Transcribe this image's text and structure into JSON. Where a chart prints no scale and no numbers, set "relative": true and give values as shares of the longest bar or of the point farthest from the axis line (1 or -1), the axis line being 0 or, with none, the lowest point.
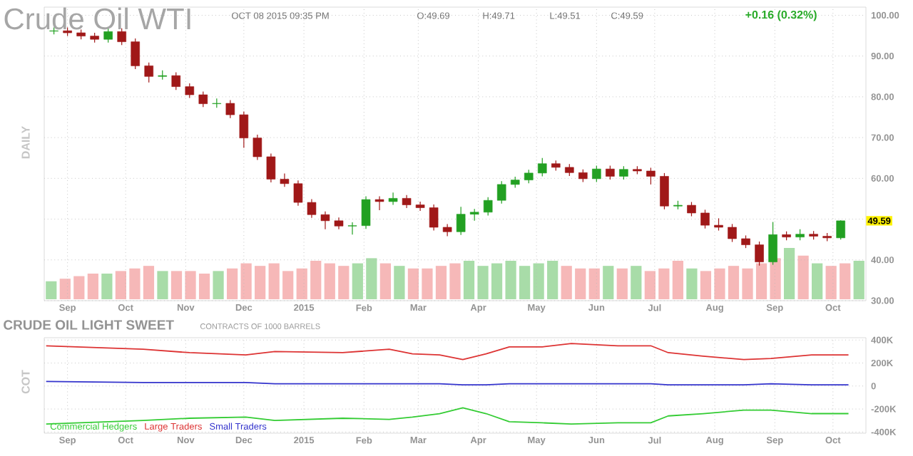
{
  "chart_data": [
    {
      "type": "candlestick",
      "title": "Crude Oil WTI",
      "ylabel": "DAILY",
      "annotations": [
        "OCT 08 2015 09:35 PM",
        "O:49.69",
        "H:49.71",
        "L:49.51",
        "C:49.59",
        "+0.16 (0.32%)",
        {
          "text": "49.59",
          "y": 49.59
        }
      ],
      "x": [
        "2014-08-25",
        "2014-09-01",
        "2014-09-08",
        "2014-09-15",
        "2014-09-22",
        "2014-09-29",
        "2014-10-06",
        "2014-10-13",
        "2014-10-20",
        "2014-10-27",
        "2014-11-03",
        "2014-11-10",
        "2014-11-17",
        "2014-11-24",
        "2014-12-01",
        "2014-12-08",
        "2014-12-15",
        "2014-12-22",
        "2014-12-29",
        "2015-01-05",
        "2015-01-12",
        "2015-01-19",
        "2015-01-26",
        "2015-02-02",
        "2015-02-09",
        "2015-02-16",
        "2015-02-23",
        "2015-03-02",
        "2015-03-09",
        "2015-03-16",
        "2015-03-23",
        "2015-03-30",
        "2015-04-06",
        "2015-04-13",
        "2015-04-20",
        "2015-04-27",
        "2015-05-04",
        "2015-05-11",
        "2015-05-18",
        "2015-05-25",
        "2015-06-01",
        "2015-06-08",
        "2015-06-15",
        "2015-06-22",
        "2015-06-29",
        "2015-07-06",
        "2015-07-13",
        "2015-07-20",
        "2015-07-27",
        "2015-08-03",
        "2015-08-10",
        "2015-08-17",
        "2015-08-24",
        "2015-08-31",
        "2015-09-07",
        "2015-09-14",
        "2015-09-21",
        "2015-09-28",
        "2015-10-05"
      ],
      "ohlc": [
        [
          96.1,
          97.0,
          95.3,
          96.2
        ],
        [
          96.2,
          97.0,
          94.9,
          95.7
        ],
        [
          95.7,
          96.5,
          94.1,
          94.9
        ],
        [
          94.9,
          95.7,
          93.3,
          94.1
        ],
        [
          94.1,
          96.8,
          93.3,
          96.0
        ],
        [
          96.0,
          96.8,
          92.7,
          93.5
        ],
        [
          93.5,
          94.3,
          86.8,
          87.6
        ],
        [
          87.6,
          88.4,
          83.5,
          85.0
        ],
        [
          85.0,
          86.5,
          84.2,
          85.2
        ],
        [
          85.2,
          86.0,
          81.7,
          82.5
        ],
        [
          82.5,
          83.3,
          79.7,
          80.5
        ],
        [
          80.5,
          81.3,
          77.5,
          78.3
        ],
        [
          78.3,
          79.6,
          77.3,
          78.4
        ],
        [
          78.4,
          79.2,
          74.8,
          75.6
        ],
        [
          75.6,
          76.4,
          67.5,
          69.9
        ],
        [
          69.9,
          70.7,
          64.5,
          65.3
        ],
        [
          65.3,
          66.1,
          59.0,
          59.8
        ],
        [
          59.8,
          61.2,
          57.9,
          58.7
        ],
        [
          58.7,
          59.5,
          53.3,
          54.1
        ],
        [
          54.1,
          54.9,
          50.3,
          51.1
        ],
        [
          51.1,
          51.9,
          47.5,
          49.6
        ],
        [
          49.6,
          50.4,
          47.5,
          48.3
        ],
        [
          48.3,
          49.2,
          46.2,
          48.4
        ],
        [
          48.4,
          55.6,
          47.6,
          54.8
        ],
        [
          54.8,
          55.6,
          52.2,
          54.3
        ],
        [
          54.3,
          56.5,
          53.5,
          55.1
        ],
        [
          55.1,
          55.9,
          52.7,
          53.5
        ],
        [
          53.5,
          54.3,
          52.0,
          52.8
        ],
        [
          52.8,
          53.6,
          47.2,
          48.0
        ],
        [
          48.0,
          48.8,
          45.8,
          46.9
        ],
        [
          46.9,
          53.0,
          46.1,
          51.2
        ],
        [
          51.2,
          52.5,
          49.6,
          51.7
        ],
        [
          51.7,
          55.4,
          50.9,
          54.6
        ],
        [
          54.6,
          59.3,
          53.8,
          58.5
        ],
        [
          58.5,
          60.4,
          57.7,
          59.6
        ],
        [
          59.6,
          62.1,
          58.8,
          61.3
        ],
        [
          61.3,
          65.0,
          60.5,
          63.6
        ],
        [
          63.6,
          64.4,
          61.9,
          62.7
        ],
        [
          62.7,
          63.5,
          60.6,
          61.4
        ],
        [
          61.4,
          62.2,
          59.1,
          59.9
        ],
        [
          59.9,
          63.1,
          59.1,
          62.3
        ],
        [
          62.3,
          63.1,
          59.7,
          60.5
        ],
        [
          60.5,
          63.0,
          59.7,
          62.2
        ],
        [
          62.2,
          63.0,
          61.0,
          61.8
        ],
        [
          61.8,
          62.6,
          58.5,
          60.5
        ],
        [
          60.5,
          61.3,
          52.4,
          53.2
        ],
        [
          53.2,
          54.5,
          52.4,
          53.4
        ],
        [
          53.4,
          54.2,
          50.7,
          51.5
        ],
        [
          51.5,
          52.3,
          47.7,
          48.5
        ],
        [
          48.5,
          50.2,
          47.2,
          48.0
        ],
        [
          48.0,
          48.8,
          44.4,
          45.2
        ],
        [
          45.2,
          46.0,
          42.9,
          43.7
        ],
        [
          43.7,
          44.5,
          38.6,
          39.5
        ],
        [
          39.5,
          49.3,
          38.8,
          46.2
        ],
        [
          46.2,
          47.0,
          44.8,
          45.6
        ],
        [
          45.6,
          47.5,
          44.8,
          46.3
        ],
        [
          46.3,
          47.1,
          45.0,
          45.8
        ],
        [
          45.8,
          46.6,
          44.6,
          45.4
        ],
        [
          45.4,
          49.71,
          45.0,
          49.59
        ]
      ],
      "colors": [
        "#22a022",
        "#a01818",
        "#a01818",
        "#a01818",
        "#22a022",
        "#a01818",
        "#a01818",
        "#a01818",
        "#22a022",
        "#a01818",
        "#a01818",
        "#a01818",
        "#22a022",
        "#a01818",
        "#a01818",
        "#a01818",
        "#a01818",
        "#a01818",
        "#a01818",
        "#a01818",
        "#a01818",
        "#a01818",
        "#22a022",
        "#22a022",
        "#a01818",
        "#22a022",
        "#a01818",
        "#a01818",
        "#a01818",
        "#a01818",
        "#22a022",
        "#22a022",
        "#22a022",
        "#22a022",
        "#22a022",
        "#22a022",
        "#22a022",
        "#a01818",
        "#a01818",
        "#a01818",
        "#22a022",
        "#a01818",
        "#22a022",
        "#a01818",
        "#a01818",
        "#a01818",
        "#22a022",
        "#a01818",
        "#a01818",
        "#a01818",
        "#a01818",
        "#a01818",
        "#a01818",
        "#22a022",
        "#a01818",
        "#22a022",
        "#a01818",
        "#a01818",
        "#22a022"
      ],
      "xlim": [
        "2014-08-20",
        "2015-10-18"
      ],
      "xticks": [
        {
          "value": "2014-09-01",
          "label": "Sep"
        },
        {
          "value": "2014-10-01",
          "label": "Oct"
        },
        {
          "value": "2014-11-01",
          "label": "Nov"
        },
        {
          "value": "2014-12-01",
          "label": "Dec"
        },
        {
          "value": "2015-01-01",
          "label": "2015"
        },
        {
          "value": "2015-02-01",
          "label": "Feb"
        },
        {
          "value": "2015-03-01",
          "label": "Mar"
        },
        {
          "value": "2015-04-01",
          "label": "Apr"
        },
        {
          "value": "2015-05-01",
          "label": "May"
        },
        {
          "value": "2015-06-01",
          "label": "Jun"
        },
        {
          "value": "2015-07-01",
          "label": "Jul"
        },
        {
          "value": "2015-08-01",
          "label": "Aug"
        },
        {
          "value": "2015-09-01",
          "label": "Sep"
        },
        {
          "value": "2015-10-01",
          "label": "Oct"
        }
      ],
      "ylim": [
        30,
        102
      ],
      "yticks": [
        {
          "value": 30,
          "label": "30.00"
        },
        {
          "value": 40,
          "label": "40.00"
        },
        {
          "value": 50,
          "label": null
        },
        {
          "value": 60,
          "label": "60.00"
        },
        {
          "value": 70,
          "label": "70.00"
        },
        {
          "value": 80,
          "label": "80.00"
        },
        {
          "value": 90,
          "label": "90.00"
        },
        {
          "value": 100,
          "label": "100.00"
        }
      ],
      "grid": true
    },
    {
      "type": "bar",
      "relative": true,
      "categories": [
        null,
        null,
        null,
        null,
        null,
        null,
        null,
        null,
        null,
        null,
        null,
        null,
        null,
        null,
        null,
        null,
        null,
        null,
        null,
        null,
        null,
        null,
        null,
        null,
        null,
        null,
        null,
        null,
        null,
        null,
        null,
        null,
        null,
        null,
        null,
        null,
        null,
        null,
        null,
        null,
        null,
        null,
        null,
        null,
        null,
        null,
        null,
        null,
        null,
        null,
        null,
        null,
        null,
        null,
        null,
        null,
        null,
        null,
        null
      ],
      "values": [
        0.35,
        0.4,
        0.45,
        0.5,
        0.5,
        0.55,
        0.6,
        0.65,
        0.55,
        0.55,
        0.55,
        0.5,
        0.55,
        0.6,
        0.7,
        0.65,
        0.7,
        0.55,
        0.6,
        0.75,
        0.7,
        0.65,
        0.7,
        0.8,
        0.7,
        0.65,
        0.6,
        0.6,
        0.65,
        0.7,
        0.75,
        0.65,
        0.7,
        0.75,
        0.65,
        0.7,
        0.75,
        0.65,
        0.6,
        0.6,
        0.65,
        0.6,
        0.65,
        0.55,
        0.6,
        0.75,
        0.6,
        0.55,
        0.6,
        0.65,
        0.6,
        0.7,
        0.8,
        1.0,
        0.85,
        0.7,
        0.65,
        0.7,
        0.75
      ],
      "colors": [
        "#a8dca8",
        "#f6b8b8",
        "#f6b8b8",
        "#f6b8b8",
        "#a8dca8",
        "#f6b8b8",
        "#f6b8b8",
        "#f6b8b8",
        "#a8dca8",
        "#f6b8b8",
        "#f6b8b8",
        "#f6b8b8",
        "#a8dca8",
        "#f6b8b8",
        "#f6b8b8",
        "#f6b8b8",
        "#f6b8b8",
        "#f6b8b8",
        "#f6b8b8",
        "#f6b8b8",
        "#f6b8b8",
        "#f6b8b8",
        "#a8dca8",
        "#a8dca8",
        "#f6b8b8",
        "#a8dca8",
        "#f6b8b8",
        "#f6b8b8",
        "#f6b8b8",
        "#f6b8b8",
        "#a8dca8",
        "#a8dca8",
        "#a8dca8",
        "#a8dca8",
        "#a8dca8",
        "#a8dca8",
        "#a8dca8",
        "#f6b8b8",
        "#f6b8b8",
        "#f6b8b8",
        "#a8dca8",
        "#f6b8b8",
        "#a8dca8",
        "#f6b8b8",
        "#f6b8b8",
        "#f6b8b8",
        "#a8dca8",
        "#f6b8b8",
        "#f6b8b8",
        "#f6b8b8",
        "#f6b8b8",
        "#f6b8b8",
        "#f6b8b8",
        "#a8dca8",
        "#f6b8b8",
        "#a8dca8",
        "#f6b8b8",
        "#f6b8b8",
        "#a8dca8"
      ]
    },
    {
      "type": "line",
      "title": "CRUDE OIL LIGHT SWEET",
      "subtitle": "CONTRACTS OF 1000 BARRELS",
      "ylabel": "COT",
      "x": [
        "2014-08-21",
        "2014-10-10",
        "2014-11-03",
        "2014-12-02",
        "2014-12-17",
        "2015-01-21",
        "2015-02-14",
        "2015-02-26",
        "2015-03-12",
        "2015-03-24",
        "2015-04-05",
        "2015-04-17",
        "2015-05-04",
        "2015-05-19",
        "2015-06-12",
        "2015-06-29",
        "2015-07-08",
        "2015-07-26",
        "2015-08-16",
        "2015-08-30",
        "2015-09-20",
        "2015-10-09"
      ],
      "series": [
        {
          "name": "Commercial Hedgers",
          "color": "#33cc33",
          "values": [
            -330000,
            -300000,
            -280000,
            -270000,
            -300000,
            -280000,
            -290000,
            -270000,
            -240000,
            -190000,
            -240000,
            -310000,
            -320000,
            -330000,
            -320000,
            -320000,
            -260000,
            -240000,
            -210000,
            -210000,
            -240000,
            -240000
          ]
        },
        {
          "name": "Large Traders",
          "color": "#dd3333",
          "values": [
            350000,
            320000,
            290000,
            270000,
            300000,
            290000,
            320000,
            280000,
            270000,
            230000,
            280000,
            340000,
            340000,
            370000,
            350000,
            350000,
            290000,
            260000,
            230000,
            240000,
            270000,
            270000
          ]
        },
        {
          "name": "Small Traders",
          "color": "#3333cc",
          "values": [
            40000,
            30000,
            30000,
            30000,
            20000,
            20000,
            20000,
            20000,
            20000,
            10000,
            10000,
            20000,
            20000,
            20000,
            20000,
            20000,
            10000,
            10000,
            10000,
            20000,
            10000,
            10000
          ]
        }
      ],
      "xlim": [
        "2014-08-20",
        "2015-10-18"
      ],
      "xticks": [
        {
          "value": "2014-09-01",
          "label": "Sep"
        },
        {
          "value": "2014-10-01",
          "label": "Oct"
        },
        {
          "value": "2014-11-01",
          "label": "Nov"
        },
        {
          "value": "2014-12-01",
          "label": "Dec"
        },
        {
          "value": "2015-01-01",
          "label": "2015"
        },
        {
          "value": "2015-02-01",
          "label": "Feb"
        },
        {
          "value": "2015-03-01",
          "label": "Mar"
        },
        {
          "value": "2015-04-01",
          "label": "Apr"
        },
        {
          "value": "2015-05-01",
          "label": "May"
        },
        {
          "value": "2015-06-01",
          "label": "Jun"
        },
        {
          "value": "2015-07-01",
          "label": "Jul"
        },
        {
          "value": "2015-08-01",
          "label": "Aug"
        },
        {
          "value": "2015-09-01",
          "label": "Sep"
        },
        {
          "value": "2015-10-01",
          "label": "Oct"
        }
      ],
      "ylim": [
        -410000,
        420000
      ],
      "yticks": [
        {
          "value": -400000,
          "label": "-400K"
        },
        {
          "value": -200000,
          "label": "-200K"
        },
        0,
        {
          "value": 200000,
          "label": "200K"
        },
        {
          "value": 400000,
          "label": "400K"
        }
      ],
      "grid": true,
      "legend": "bottom left",
      "marker": "none",
      "line_style": "solid"
    }
  ]
}
